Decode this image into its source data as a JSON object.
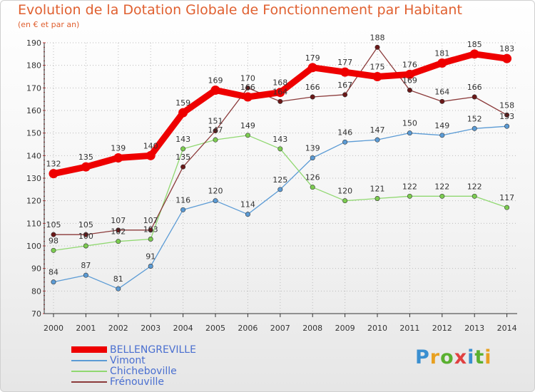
{
  "colors": {
    "title": "#e06030",
    "axis": "#333333",
    "grid": "#bbbbbb",
    "label": "#333333",
    "legend_text": "#4a6fd0"
  },
  "logo": {
    "text": "Proxiti",
    "letter_colors": [
      "#3a8fd0",
      "#e8a020",
      "#5ab030",
      "#e04040",
      "#3a8fd0",
      "#5ab030",
      "#e8a020"
    ]
  },
  "chart_data": {
    "type": "line",
    "title": "Evolution de la Dotation Globale de Fonctionnement par Habitant",
    "subtitle": "(en € et par an)",
    "x": [
      "2000",
      "2001",
      "2002",
      "2003",
      "2004",
      "2005",
      "2006",
      "2007",
      "2008",
      "2009",
      "2010",
      "2011",
      "2012",
      "2013",
      "2014"
    ],
    "ylim": [
      70,
      190
    ],
    "yticks": [
      70,
      80,
      90,
      100,
      110,
      120,
      130,
      140,
      150,
      160,
      170,
      180,
      190
    ],
    "grid": true,
    "legend_position": "bottom-left",
    "series": [
      {
        "name": "Vimont",
        "color": "#5b9bd5",
        "dot": "#5b9bd5",
        "values": [
          84,
          87,
          81,
          91,
          116,
          120,
          114,
          125,
          139,
          146,
          147,
          150,
          149,
          152,
          153
        ]
      },
      {
        "name": "Chicheboville",
        "color": "#90d870",
        "dot": "#7ccc50",
        "values": [
          98,
          100,
          102,
          103,
          143,
          147,
          149,
          143,
          126,
          120,
          121,
          122,
          122,
          122,
          117
        ]
      },
      {
        "name": "Frénouville",
        "color": "#8b3a3a",
        "dot": "#6b1818",
        "values": [
          105,
          105,
          107,
          107,
          135,
          151,
          170,
          164,
          166,
          167,
          188,
          169,
          164,
          166,
          158
        ]
      },
      {
        "name": "BELLENGREVILLE",
        "color": "#ee0000",
        "dot": "#ee0000",
        "values": [
          132,
          135,
          139,
          140,
          159,
          169,
          166,
          168,
          179,
          177,
          175,
          176,
          181,
          185,
          183
        ]
      }
    ],
    "legend_order": [
      "BELLENGREVILLE",
      "Vimont",
      "Chicheboville",
      "Frénouville"
    ]
  }
}
